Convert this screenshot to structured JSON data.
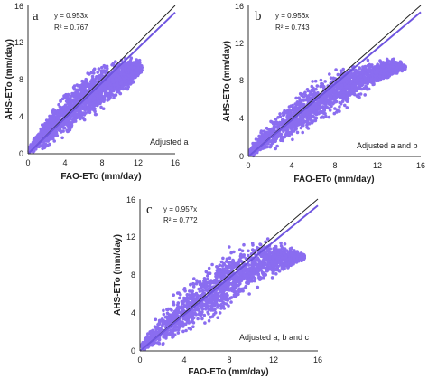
{
  "figure": {
    "panels": [
      {
        "letter": "a",
        "equation": "y = 0.953x",
        "r2": "R² = 0.767",
        "note": "Adjusted a",
        "xlabel": "FAO-ETo (mm/day)",
        "ylabel": "AHS-ETo (mm/day)"
      },
      {
        "letter": "b",
        "equation": "y = 0.956x",
        "r2": "R² = 0.743",
        "note": "Adjusted a and b",
        "xlabel": "FAO-ETo (mm/day)",
        "ylabel": "AHS-ETo (mm/day)"
      },
      {
        "letter": "c",
        "equation": "y = 0.957x",
        "r2": "R² = 0.772",
        "note": "Adjusted a, b and c",
        "xlabel": "FAO-ETo (mm/day)",
        "ylabel": "AHS-ETo (mm/day)"
      }
    ]
  },
  "chart_data": [
    {
      "type": "scatter",
      "panel": "a",
      "xlabel": "FAO-ETo (mm/day)",
      "ylabel": "AHS-ETo (mm/day)",
      "xlim": [
        0,
        16
      ],
      "ylim": [
        0,
        16
      ],
      "xticks": [
        "0",
        "4",
        "8",
        "12",
        "16"
      ],
      "yticks": [
        "0",
        "4",
        "8",
        "12",
        "16"
      ],
      "grid": false,
      "point_color": "#8a6df0",
      "lines": [
        {
          "kind": "fit",
          "slope": 0.953,
          "intercept": 0,
          "color": "#6f55e0"
        },
        {
          "kind": "1:1",
          "slope": 1,
          "intercept": 0,
          "color": "#222222"
        }
      ],
      "cloud_envelope": {
        "x": [
          0.1,
          1,
          2,
          3,
          4,
          5,
          6,
          7,
          8,
          9,
          10,
          11,
          12,
          12.4
        ],
        "y_lower": [
          0.0,
          0.1,
          0.5,
          1.1,
          1.7,
          2.4,
          3.1,
          3.9,
          4.7,
          5.5,
          6.3,
          7.1,
          8.0,
          8.8
        ],
        "y_upper": [
          0.8,
          2.5,
          4.0,
          5.4,
          6.6,
          7.6,
          8.4,
          9.0,
          9.6,
          10.0,
          10.3,
          10.6,
          10.4,
          9.6
        ]
      },
      "annotations": [
        "y = 0.953x",
        "R² = 0.767",
        "Adjusted a"
      ]
    },
    {
      "type": "scatter",
      "panel": "b",
      "xlabel": "FAO-ETo (mm/day)",
      "ylabel": "AHS-ETo (mm/day)",
      "xlim": [
        0,
        16
      ],
      "ylim": [
        0,
        16
      ],
      "xticks": [
        "0",
        "4",
        "8",
        "12",
        "16"
      ],
      "yticks": [
        "0",
        "4",
        "8",
        "12",
        "16"
      ],
      "grid": false,
      "point_color": "#8a6df0",
      "lines": [
        {
          "kind": "fit",
          "slope": 0.956,
          "intercept": 0,
          "color": "#6f55e0"
        },
        {
          "kind": "1:1",
          "slope": 1,
          "intercept": 0,
          "color": "#222222"
        }
      ],
      "cloud_envelope": {
        "x": [
          0.1,
          1,
          2,
          3,
          4,
          5,
          6,
          7,
          8,
          9,
          10,
          11,
          12,
          13,
          14,
          14.6
        ],
        "y_lower": [
          0.0,
          0.1,
          0.4,
          0.9,
          1.5,
          2.1,
          2.8,
          3.6,
          4.4,
          5.2,
          6.0,
          6.8,
          7.6,
          8.2,
          8.8,
          9.2
        ],
        "y_upper": [
          0.8,
          2.4,
          3.8,
          5.0,
          6.2,
          7.2,
          8.0,
          8.7,
          9.2,
          9.6,
          10.0,
          10.2,
          10.3,
          10.4,
          10.2,
          9.6
        ]
      },
      "annotations": [
        "y = 0.956x",
        "R² = 0.743",
        "Adjusted a and b"
      ]
    },
    {
      "type": "scatter",
      "panel": "c",
      "xlabel": "FAO-ETo (mm/day)",
      "ylabel": "AHS-ETo (mm/day)",
      "xlim": [
        0,
        16
      ],
      "ylim": [
        0,
        16
      ],
      "xticks": [
        "0",
        "4",
        "8",
        "12",
        "16"
      ],
      "yticks": [
        "0",
        "4",
        "8",
        "12",
        "16"
      ],
      "grid": false,
      "point_color": "#8a6df0",
      "lines": [
        {
          "kind": "fit",
          "slope": 0.957,
          "intercept": 0,
          "color": "#6f55e0"
        },
        {
          "kind": "1:1",
          "slope": 1,
          "intercept": 0,
          "color": "#222222"
        }
      ],
      "cloud_envelope": {
        "x": [
          0.1,
          1,
          2,
          3,
          4,
          5,
          6,
          7,
          8,
          9,
          10,
          11,
          12,
          13,
          14,
          14.8
        ],
        "y_lower": [
          0.0,
          0.1,
          0.4,
          0.9,
          1.5,
          2.1,
          2.8,
          3.6,
          4.4,
          5.2,
          6.0,
          6.8,
          7.6,
          8.3,
          9.0,
          9.6
        ],
        "y_upper": [
          0.8,
          2.6,
          4.2,
          5.6,
          6.9,
          8.0,
          9.0,
          9.9,
          10.6,
          11.2,
          11.6,
          11.8,
          11.7,
          11.4,
          10.8,
          10.2
        ]
      },
      "annotations": [
        "y = 0.957x",
        "R² = 0.772",
        "Adjusted a, b and c"
      ]
    }
  ]
}
